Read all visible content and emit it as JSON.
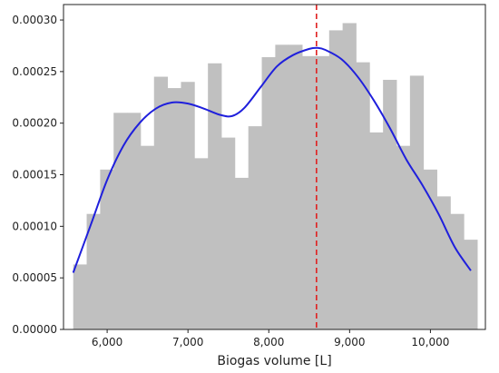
{
  "chart_data": {
    "type": "bar",
    "xlabel": "Biogas volume [L]",
    "ylabel": "",
    "xlim": [
      5460,
      10680
    ],
    "ylim": [
      0,
      0.000315
    ],
    "x_ticks": [
      6000,
      7000,
      8000,
      9000,
      10000
    ],
    "x_tick_labels": [
      "6,000",
      "7,000",
      "8,000",
      "9,000",
      "10,000"
    ],
    "y_ticks": [
      0,
      5e-05,
      0.0001,
      0.00015,
      0.0002,
      0.00025,
      0.0003
    ],
    "y_tick_labels": [
      "0.00000",
      "0.00005",
      "0.00010",
      "0.00015",
      "0.00020",
      "0.00025",
      "0.00030"
    ],
    "grid": false,
    "histogram": {
      "color": "#c0c0c0",
      "bin_width": 166.67,
      "bin_start": 5580,
      "values": [
        6.3e-05,
        0.000112,
        0.000155,
        0.00021,
        0.00021,
        0.000178,
        0.000245,
        0.000234,
        0.00024,
        0.000166,
        0.000258,
        0.000186,
        0.000147,
        0.000197,
        0.000264,
        0.000276,
        0.000276,
        0.000265,
        0.000265,
        0.00029,
        0.000297,
        0.000259,
        0.000191,
        0.000242,
        0.000178,
        0.000246,
        0.000155,
        0.000129,
        0.000112,
        8.7e-05
      ]
    },
    "kde": {
      "color": "#1f1fdc",
      "x": [
        5580,
        5800,
        6000,
        6200,
        6400,
        6600,
        6800,
        7000,
        7200,
        7400,
        7550,
        7700,
        7900,
        8100,
        8300,
        8500,
        8600,
        8700,
        8900,
        9100,
        9300,
        9500,
        9700,
        9900,
        10100,
        10300,
        10500
      ],
      "y": [
        5.5e-05,
        0.000102,
        0.000145,
        0.000178,
        0.0002,
        0.000214,
        0.00022,
        0.000219,
        0.000214,
        0.000208,
        0.000207,
        0.000215,
        0.000235,
        0.000255,
        0.000266,
        0.000272,
        0.000273,
        0.000271,
        0.000262,
        0.000245,
        0.000222,
        0.000195,
        0.000165,
        0.00014,
        0.000112,
        8e-05,
        5.7e-05
      ]
    },
    "reference_line": {
      "x": 8590,
      "color": "#e02020",
      "style": "dashed"
    }
  }
}
